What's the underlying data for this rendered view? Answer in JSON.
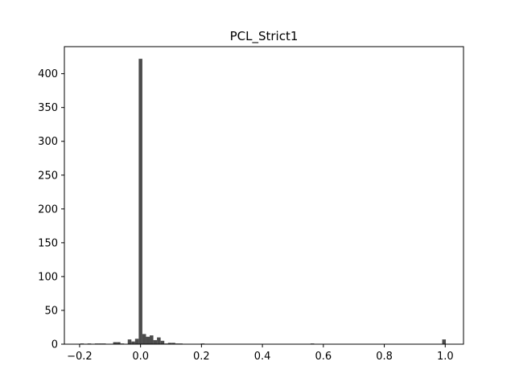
{
  "chart_data": {
    "type": "bar",
    "title": "PCL_Strict1",
    "xlabel": "",
    "ylabel": "",
    "xlim": [
      -0.25,
      1.06
    ],
    "ylim": [
      0,
      440
    ],
    "xticks": [
      -0.2,
      0.0,
      0.2,
      0.4,
      0.6,
      0.8,
      1.0
    ],
    "xtick_labels": [
      "−0.2",
      "0.0",
      "0.2",
      "0.4",
      "0.6",
      "0.8",
      "1.0"
    ],
    "yticks": [
      0,
      50,
      100,
      150,
      200,
      250,
      300,
      350,
      400
    ],
    "ytick_labels": [
      "0",
      "50",
      "100",
      "150",
      "200",
      "250",
      "300",
      "350",
      "400"
    ],
    "bar_color": "#4c4c4c",
    "bin_width": 0.012,
    "bins": [
      {
        "x": -0.192,
        "count": 1
      },
      {
        "x": -0.168,
        "count": 1
      },
      {
        "x": -0.144,
        "count": 1
      },
      {
        "x": -0.132,
        "count": 1
      },
      {
        "x": -0.12,
        "count": 1
      },
      {
        "x": -0.084,
        "count": 3
      },
      {
        "x": -0.072,
        "count": 3
      },
      {
        "x": -0.06,
        "count": 1
      },
      {
        "x": -0.036,
        "count": 7
      },
      {
        "x": -0.024,
        "count": 4
      },
      {
        "x": -0.012,
        "count": 8
      },
      {
        "x": 0.0,
        "count": 422
      },
      {
        "x": 0.012,
        "count": 15
      },
      {
        "x": 0.024,
        "count": 11
      },
      {
        "x": 0.036,
        "count": 13
      },
      {
        "x": 0.048,
        "count": 6
      },
      {
        "x": 0.06,
        "count": 10
      },
      {
        "x": 0.072,
        "count": 5
      },
      {
        "x": 0.084,
        "count": 1
      },
      {
        "x": 0.096,
        "count": 2
      },
      {
        "x": 0.108,
        "count": 2
      },
      {
        "x": 0.12,
        "count": 1
      },
      {
        "x": 0.132,
        "count": 1
      },
      {
        "x": 0.204,
        "count": 1
      },
      {
        "x": 0.564,
        "count": 1
      },
      {
        "x": 0.996,
        "count": 7
      }
    ]
  }
}
